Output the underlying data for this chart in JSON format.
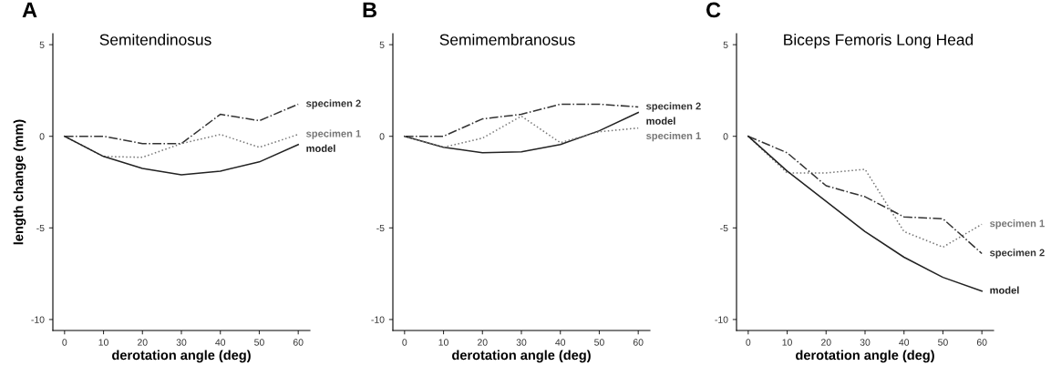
{
  "chart_data": [
    {
      "type": "line",
      "title": "Semitendinosus",
      "annotations": [
        "A"
      ],
      "xlabel": "derotation angle (deg)",
      "ylabel": "length change (mm)",
      "x": [
        0,
        10,
        20,
        30,
        40,
        50,
        60
      ],
      "xlim": [
        -3,
        63
      ],
      "xticks": [
        0,
        10,
        20,
        30,
        40,
        50,
        60
      ],
      "ylim": [
        -10.6,
        5.6
      ],
      "yticks": [
        -10,
        -5,
        0,
        5
      ],
      "grid": false,
      "legend": false,
      "marker": "none",
      "series": [
        {
          "name": "specimen 2",
          "color": "#333333",
          "line_style": "dashdot",
          "values": [
            0,
            0,
            -0.4,
            -0.4,
            1.2,
            0.85,
            1.75
          ]
        },
        {
          "name": "specimen 1",
          "color": "#777777",
          "line_style": "dotted",
          "values": [
            0,
            -1.1,
            -1.15,
            -0.4,
            0.1,
            -0.6,
            0.1
          ]
        },
        {
          "name": "model",
          "color": "#222222",
          "line_style": "solid",
          "values": [
            0,
            -1.1,
            -1.75,
            -2.1,
            -1.9,
            -1.4,
            -0.45
          ]
        }
      ]
    },
    {
      "type": "line",
      "title": "Semimembranosus",
      "annotations": [
        "B"
      ],
      "xlabel": "derotation angle (deg)",
      "x": [
        0,
        10,
        20,
        30,
        40,
        50,
        60
      ],
      "xlim": [
        -3,
        63
      ],
      "xticks": [
        0,
        10,
        20,
        30,
        40,
        50,
        60
      ],
      "ylim": [
        -10.6,
        5.6
      ],
      "yticks": [
        -10,
        -5,
        0,
        5
      ],
      "grid": false,
      "legend": false,
      "marker": "none",
      "series": [
        {
          "name": "specimen 2",
          "color": "#333333",
          "line_style": "dashdot",
          "values": [
            0,
            0,
            0.95,
            1.2,
            1.75,
            1.75,
            1.6
          ]
        },
        {
          "name": "model",
          "color": "#222222",
          "line_style": "solid",
          "values": [
            0,
            -0.6,
            -0.9,
            -0.85,
            -0.45,
            0.3,
            1.3
          ]
        },
        {
          "name": "specimen 1",
          "color": "#777777",
          "line_style": "dotted",
          "values": [
            0,
            -0.6,
            -0.1,
            1.1,
            -0.35,
            0.25,
            0.45
          ]
        }
      ]
    },
    {
      "type": "line",
      "title": "Biceps Femoris Long Head",
      "annotations": [
        "C"
      ],
      "xlabel": "derotation angle (deg)",
      "x": [
        0,
        10,
        20,
        30,
        40,
        50,
        60
      ],
      "xlim": [
        -3,
        63
      ],
      "xticks": [
        0,
        10,
        20,
        30,
        40,
        50,
        60
      ],
      "ylim": [
        -10.6,
        5.6
      ],
      "yticks": [
        -10,
        -5,
        0,
        5
      ],
      "grid": false,
      "legend": false,
      "marker": "none",
      "series": [
        {
          "name": "specimen 1",
          "color": "#777777",
          "line_style": "dotted",
          "values": [
            0,
            -2.0,
            -2.0,
            -1.8,
            -5.2,
            -6.05,
            -4.8
          ]
        },
        {
          "name": "specimen 2",
          "color": "#333333",
          "line_style": "dashdot",
          "values": [
            0,
            -0.9,
            -2.7,
            -3.3,
            -4.4,
            -4.5,
            -6.4
          ]
        },
        {
          "name": "model",
          "color": "#222222",
          "line_style": "solid",
          "values": [
            0,
            -1.9,
            -3.55,
            -5.2,
            -6.6,
            -7.7,
            -8.45
          ]
        }
      ]
    }
  ]
}
